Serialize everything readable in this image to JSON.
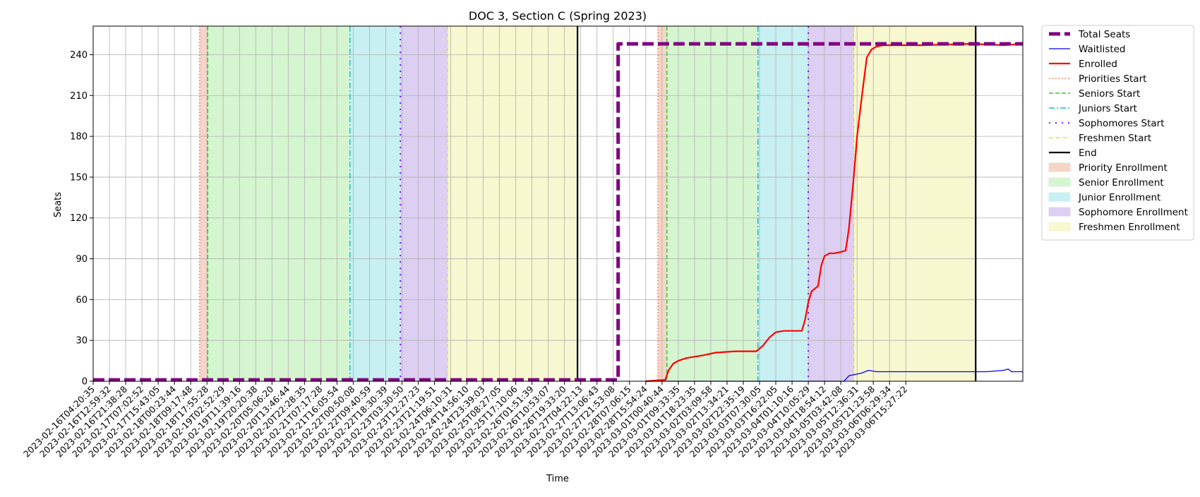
{
  "chart_data": {
    "type": "line",
    "title": "DOC 3, Section C (Spring 2023)",
    "xlabel": "Time",
    "ylabel": "Seats",
    "ylim": [
      0,
      261
    ],
    "yticks": [
      0,
      30,
      60,
      90,
      120,
      150,
      180,
      210,
      240
    ],
    "grid": true,
    "legend_position": "outside-top-right",
    "xlim_index": [
      0,
      57.2
    ],
    "xtick_labels": [
      "2023-02-16T04:20:35",
      "2023-02-16T12:59:32",
      "2023-02-16T21:38:28",
      "2023-02-17T07:02:52",
      "2023-02-17T15:43:05",
      "2023-02-18T00:23:44",
      "2023-02-18T09:17:48",
      "2023-02-18T17:55:28",
      "2023-02-19T02:52:29",
      "2023-02-19T11:39:16",
      "2023-02-19T20:20:38",
      "2023-02-20T05:06:20",
      "2023-02-20T13:46:44",
      "2023-02-20T22:28:35",
      "2023-02-21T07:17:28",
      "2023-02-21T16:05:54",
      "2023-02-22T00:50:08",
      "2023-02-22T09:40:59",
      "2023-02-22T18:30:39",
      "2023-02-23T03:30:50",
      "2023-02-23T12:27:23",
      "2023-02-23T21:19:51",
      "2023-02-24T06:10:31",
      "2023-02-24T14:56:10",
      "2023-02-24T23:39:03",
      "2023-02-25T08:27:05",
      "2023-02-25T17:10:06",
      "2023-02-26T01:51:39",
      "2023-02-26T10:53:07",
      "2023-02-26T19:33:20",
      "2023-02-27T04:22:13",
      "2023-02-27T13:06:43",
      "2023-02-27T21:53:08",
      "2023-02-28T07:06:15",
      "2023-02-28T15:54:24",
      "2023-03-01T00:40:44",
      "2023-03-01T09:33:35",
      "2023-03-01T18:23:35",
      "2023-03-02T03:09:58",
      "2023-03-02T13:34:21",
      "2023-03-02T22:35:19",
      "2023-03-03T07:30:05",
      "2023-03-03T16:22:05",
      "2023-03-04T01:10:16",
      "2023-03-04T10:05:29",
      "2023-03-04T18:54:12",
      "2023-03-05T03:42:08",
      "2023-03-05T12:36:31",
      "2023-03-05T21:23:58",
      "2023-03-06T06:29:34",
      "2023-03-06T15:27:22"
    ],
    "series": [
      {
        "name": "Total Seats",
        "color": "#800080",
        "style": "dashed-thick",
        "x": [
          0,
          32.3,
          32.3,
          57.2
        ],
        "y": [
          1,
          1,
          248,
          248
        ]
      },
      {
        "name": "Waitlisted",
        "color": "#0000ff",
        "style": "solid-thin",
        "x": [
          34.0,
          46.2,
          46.5,
          46.9,
          47.3,
          47.7,
          48.2,
          49.5,
          55.0,
          56.0,
          56.3,
          56.5,
          57.2
        ],
        "y": [
          0,
          0,
          4,
          5,
          6,
          8,
          7,
          7,
          7,
          8,
          9,
          7,
          7
        ]
      },
      {
        "name": "Enrolled",
        "color": "#ff0000",
        "style": "solid",
        "x": [
          34.0,
          35.2,
          35.4,
          35.7,
          36.0,
          36.5,
          37.5,
          38.3,
          39.5,
          40.8,
          41.2,
          41.6,
          42.0,
          42.5,
          43.0,
          43.6,
          43.8,
          44.0,
          44.2,
          44.6,
          44.8,
          45.0,
          45.3,
          45.6,
          46.0,
          46.3,
          46.5,
          46.8,
          47.0,
          47.3,
          47.6,
          47.9,
          48.2,
          48.6,
          49.0,
          51.0,
          54.0,
          56.0,
          57.2
        ],
        "y": [
          0,
          1,
          8,
          13,
          15,
          17,
          19,
          21,
          22,
          22,
          26,
          32,
          36,
          37,
          37,
          37,
          45,
          58,
          66,
          70,
          85,
          92,
          94,
          94,
          95,
          96,
          112,
          150,
          180,
          210,
          238,
          244,
          246,
          247,
          247,
          247,
          248,
          247,
          248
        ]
      },
      {
        "name": "Priorities Start",
        "color": "#ff6040",
        "style": "dotted",
        "vline": [
          6.55,
          34.75
        ]
      },
      {
        "name": "Seniors Start",
        "color": "#2ecc2e",
        "style": "dashed",
        "vline": [
          7.05,
          35.3
        ]
      },
      {
        "name": "Juniors Start",
        "color": "#17becf",
        "style": "dashdot",
        "vline": [
          15.8,
          40.9
        ]
      },
      {
        "name": "Sophomores Start",
        "color": "#6a00ff",
        "style": "loosely-dotted",
        "vline": [
          18.9,
          44.0
        ]
      },
      {
        "name": "Freshmen Start",
        "color": "#e8d800",
        "style": "dashdot-thin",
        "vline": [
          21.8,
          46.8
        ]
      },
      {
        "name": "End",
        "color": "#000000",
        "style": "solid",
        "vline": [
          29.8,
          54.3
        ]
      }
    ],
    "regions": [
      {
        "name": "Priority Enrollment",
        "color": "#f5d5c8",
        "spans": [
          [
            6.55,
            7.05
          ],
          [
            34.75,
            35.3
          ]
        ]
      },
      {
        "name": "Senior Enrollment",
        "color": "#d5f5d0",
        "spans": [
          [
            7.05,
            15.8
          ],
          [
            35.3,
            40.9
          ]
        ]
      },
      {
        "name": "Junior Enrollment",
        "color": "#c8f0f2",
        "spans": [
          [
            15.8,
            18.9
          ],
          [
            40.9,
            44.0
          ]
        ]
      },
      {
        "name": "Sophomore Enrollment",
        "color": "#dccff2",
        "spans": [
          [
            18.9,
            21.8
          ],
          [
            44.0,
            46.8
          ]
        ]
      },
      {
        "name": "Freshmen Enrollment",
        "color": "#f7f7d0",
        "spans": [
          [
            21.8,
            29.8
          ],
          [
            46.8,
            54.3
          ]
        ]
      }
    ],
    "legend": [
      {
        "label": "Total Seats",
        "kind": "line",
        "color": "#800080",
        "style": "dashed-thick"
      },
      {
        "label": "Waitlisted",
        "kind": "line",
        "color": "#0000ff",
        "style": "solid-thin"
      },
      {
        "label": "Enrolled",
        "kind": "line",
        "color": "#ff0000",
        "style": "solid"
      },
      {
        "label": "Priorities Start",
        "kind": "line",
        "color": "#ff6040",
        "style": "dotted"
      },
      {
        "label": "Seniors Start",
        "kind": "line",
        "color": "#2ecc2e",
        "style": "dashed"
      },
      {
        "label": "Juniors Start",
        "kind": "line",
        "color": "#17becf",
        "style": "dashdot"
      },
      {
        "label": "Sophomores Start",
        "kind": "line",
        "color": "#6a00ff",
        "style": "loosely-dotted"
      },
      {
        "label": "Freshmen Start",
        "kind": "line",
        "color": "#e8d800",
        "style": "dashdot-thin"
      },
      {
        "label": "End",
        "kind": "line",
        "color": "#000000",
        "style": "solid"
      },
      {
        "label": "Priority Enrollment",
        "kind": "patch",
        "color": "#f5d5c8"
      },
      {
        "label": "Senior Enrollment",
        "kind": "patch",
        "color": "#d5f5d0"
      },
      {
        "label": "Junior Enrollment",
        "kind": "patch",
        "color": "#c8f0f2"
      },
      {
        "label": "Sophomore Enrollment",
        "kind": "patch",
        "color": "#dccff2"
      },
      {
        "label": "Freshmen Enrollment",
        "kind": "patch",
        "color": "#f7f7d0"
      }
    ]
  }
}
